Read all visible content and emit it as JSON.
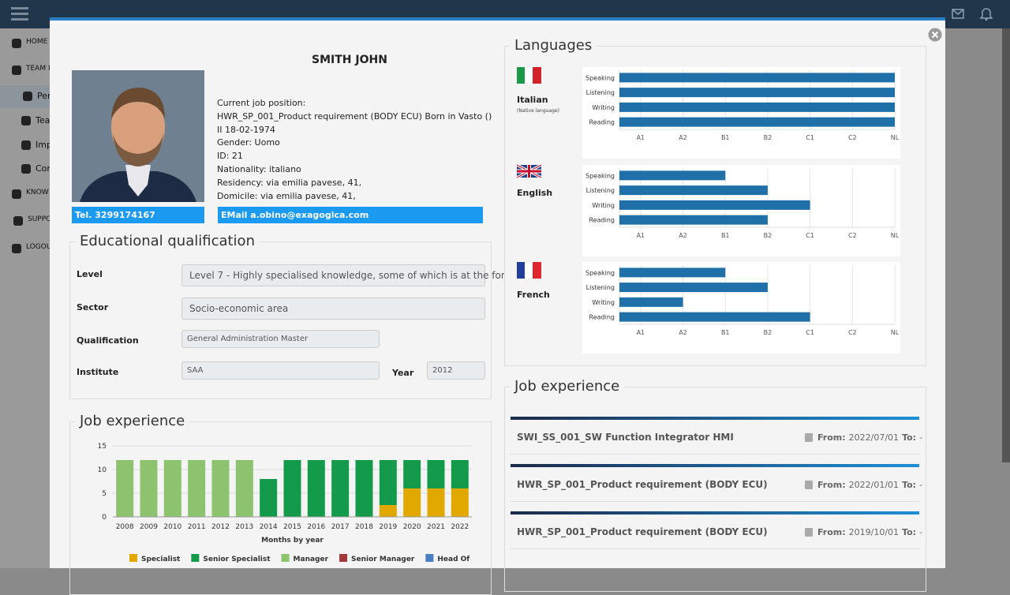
{
  "nav": {
    "items": [
      "HOME",
      "TEAM M",
      "Per",
      "Tea",
      "Imp",
      "Cor",
      "KNOW",
      "SUPPO",
      "LOGOU"
    ]
  },
  "profile": {
    "name": "SMITH JOHN",
    "info": [
      "Current job position:",
      "HWR_SP_001_Product requirement (BODY ECU)  Born in  Vasto  ()",
      "II  18-02-1974",
      "Gender:  Uomo",
      "ID:  21",
      "Nationality:  italiano",
      "Residency:  via emilia pavese, 41,",
      "Domicile:  via emilia pavese, 41,"
    ],
    "tel": "Tel. 3299174167",
    "email": "EMail a.obino@exagogica.com"
  },
  "education": {
    "title": "Educational qualification",
    "rows": [
      {
        "label": "Level",
        "value": "Level 7 - Highly specialised knowledge, some of which is at the for"
      },
      {
        "label": "Sector",
        "value": "Socio-economic area"
      },
      {
        "label": "Qualification",
        "value": "General Administration Master"
      },
      {
        "label": "Institute",
        "value": "SAA"
      }
    ],
    "year_label": "Year",
    "year": "2012"
  },
  "languages": {
    "title": "Languages"
  },
  "experience": {
    "title": "Job experience",
    "items": [
      {
        "title": "SWI_SS_001_SW Function Integrator HMI",
        "from_label": "From:",
        "from": "2022/07/01",
        "to_label": "To:",
        "to": "-"
      },
      {
        "title": "HWR_SP_001_Product requirement (BODY ECU)",
        "from_label": "From:",
        "from": "2022/01/01",
        "to_label": "To:",
        "to": "-"
      },
      {
        "title": "HWR_SP_001_Product requirement (BODY ECU)",
        "from_label": "From:",
        "from": "2019/10/01",
        "to_label": "To:",
        "to": "-"
      }
    ]
  },
  "chart_data": [
    {
      "type": "bar",
      "stacked": true,
      "title": "Job experience",
      "x_label": "Months by year",
      "categories": [
        "2008",
        "2009",
        "2010",
        "2011",
        "2012",
        "2013",
        "2014",
        "2015",
        "2016",
        "2017",
        "2018",
        "2019",
        "2020",
        "2021",
        "2022"
      ],
      "series": [
        {
          "name": "Specialist",
          "color": "#e0a800",
          "values": [
            0,
            0,
            0,
            0,
            0,
            0,
            0,
            0,
            0,
            0,
            0,
            2.5,
            6,
            6,
            6
          ]
        },
        {
          "name": "Senior Specialist",
          "color": "#139a4a",
          "values": [
            0,
            0,
            0,
            0,
            0,
            0,
            8,
            12,
            12,
            12,
            12,
            9.5,
            6,
            6,
            6
          ]
        },
        {
          "name": "Manager",
          "color": "#8dc26f",
          "values": [
            12,
            12,
            12,
            12,
            12,
            12,
            0,
            0,
            0,
            0,
            0,
            0,
            0,
            0,
            0
          ]
        },
        {
          "name": "Senior Manager",
          "color": "#a33a3a",
          "values": [
            0,
            0,
            0,
            0,
            0,
            0,
            0,
            0,
            0,
            0,
            0,
            0,
            0,
            0,
            0
          ]
        },
        {
          "name": "Head Of",
          "color": "#4a7fc1",
          "values": [
            0,
            0,
            0,
            0,
            0,
            0,
            0,
            0,
            0,
            0,
            0,
            0,
            0,
            0,
            0
          ]
        }
      ],
      "ylim": [
        0,
        15
      ],
      "yticks": [
        0,
        5,
        10,
        15
      ],
      "grid": true
    },
    {
      "type": "barh",
      "title": "Italian",
      "subtitle": "(Native language)",
      "color": "#1f6fa8",
      "categories": [
        "Speaking",
        "Listening",
        "Writing",
        "Reading"
      ],
      "values": [
        7,
        7,
        7,
        7
      ],
      "xlim": [
        0.5,
        7
      ],
      "xticks": [
        {
          "value": 1,
          "label": "A1"
        },
        {
          "value": 2,
          "label": "A2"
        },
        {
          "value": 3,
          "label": "B1"
        },
        {
          "value": 4,
          "label": "B2"
        },
        {
          "value": 5,
          "label": "C1"
        },
        {
          "value": 6,
          "label": "C2"
        },
        {
          "value": 7,
          "label": "NL"
        }
      ],
      "grid": true
    },
    {
      "type": "barh",
      "title": "English",
      "color": "#1f6fa8",
      "categories": [
        "Speaking",
        "Listening",
        "Writing",
        "Reading"
      ],
      "values": [
        3,
        4,
        5,
        4
      ],
      "xlim": [
        0.5,
        7
      ],
      "xticks": [
        {
          "value": 1,
          "label": "A1"
        },
        {
          "value": 2,
          "label": "A2"
        },
        {
          "value": 3,
          "label": "B1"
        },
        {
          "value": 4,
          "label": "B2"
        },
        {
          "value": 5,
          "label": "C1"
        },
        {
          "value": 6,
          "label": "C2"
        },
        {
          "value": 7,
          "label": "NL"
        }
      ],
      "grid": true
    },
    {
      "type": "barh",
      "title": "French",
      "color": "#1f6fa8",
      "categories": [
        "Speaking",
        "Listening",
        "Writing",
        "Reading"
      ],
      "values": [
        3,
        4,
        2,
        5
      ],
      "xlim": [
        0.5,
        7
      ],
      "xticks": [
        {
          "value": 1,
          "label": "A1"
        },
        {
          "value": 2,
          "label": "A2"
        },
        {
          "value": 3,
          "label": "B1"
        },
        {
          "value": 4,
          "label": "B2"
        },
        {
          "value": 5,
          "label": "C1"
        },
        {
          "value": 6,
          "label": "C2"
        },
        {
          "value": 7,
          "label": "NL"
        }
      ],
      "grid": true
    }
  ]
}
